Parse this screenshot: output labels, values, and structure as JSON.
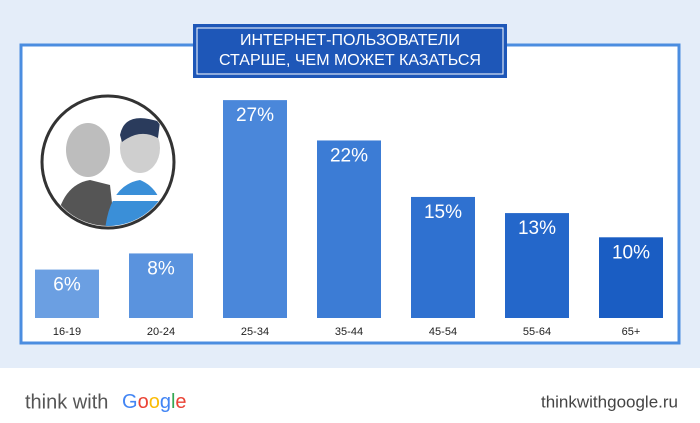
{
  "chart_data": {
    "type": "bar",
    "title_lines": [
      "ИНТЕРНЕТ-ПОЛЬЗОВАТЕЛИ",
      "СТАРШЕ, ЧЕМ МОЖЕТ КАЗАТЬСЯ"
    ],
    "categories": [
      "16-19",
      "20-24",
      "25-34",
      "35-44",
      "45-54",
      "55-64",
      "65+"
    ],
    "values": [
      6,
      8,
      27,
      22,
      15,
      13,
      10
    ],
    "value_labels": [
      "6%",
      "8%",
      "27%",
      "22%",
      "15%",
      "13%",
      "10%"
    ],
    "colors": [
      "#6b9fe2",
      "#5a93de",
      "#4a87da",
      "#3c7cd5",
      "#2f71d0",
      "#2467ca",
      "#1a5dc3"
    ]
  },
  "footer": {
    "brand_prefix": "think with",
    "brand_name": "Google",
    "site": "thinkwithgoogle.ru"
  }
}
